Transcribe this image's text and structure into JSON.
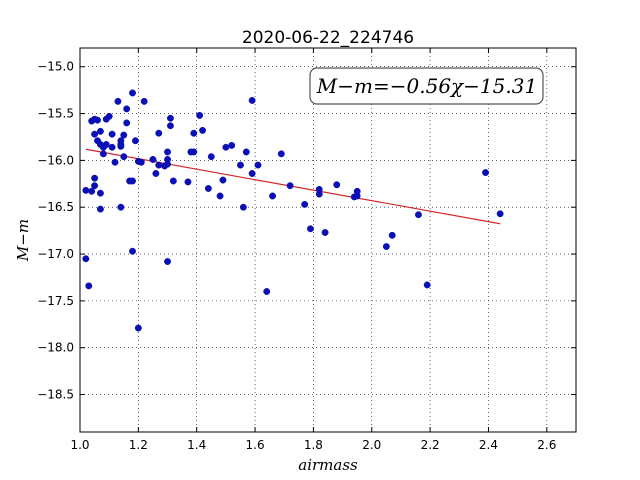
{
  "chart_data": {
    "type": "scatter",
    "title": "2020-06-22_224746",
    "xlabel": "airmass",
    "ylabel": "M−m",
    "xlim": [
      1.0,
      2.7
    ],
    "ylim": [
      -18.9,
      -14.8
    ],
    "y_inverted": true,
    "grid": true,
    "x_ticks": [
      "1.0",
      "1.2",
      "1.4",
      "1.6",
      "1.8",
      "2.0",
      "2.2",
      "2.4",
      "2.6"
    ],
    "y_ticks": [
      "−15.0",
      "−15.5",
      "−16.0",
      "−16.5",
      "−17.0",
      "−17.5",
      "−18.0",
      "−18.5"
    ],
    "annotation": "M−m=−0.56χ−15.31",
    "fit_line": {
      "slope": -0.56,
      "intercept": -15.31,
      "x_range": [
        1.02,
        2.44
      ],
      "color": "#d62728"
    },
    "marker_color": "#0b0fb6",
    "points": [
      [
        1.02,
        -17.05
      ],
      [
        1.03,
        -17.34
      ],
      [
        1.02,
        -16.32
      ],
      [
        1.04,
        -16.33
      ],
      [
        1.05,
        -16.19
      ],
      [
        1.05,
        -16.27
      ],
      [
        1.07,
        -16.35
      ],
      [
        1.07,
        -16.52
      ],
      [
        1.04,
        -15.58
      ],
      [
        1.05,
        -15.56
      ],
      [
        1.06,
        -15.57
      ],
      [
        1.05,
        -15.72
      ],
      [
        1.06,
        -15.79
      ],
      [
        1.07,
        -15.83
      ],
      [
        1.07,
        -15.69
      ],
      [
        1.08,
        -15.86
      ],
      [
        1.08,
        -15.93
      ],
      [
        1.09,
        -15.83
      ],
      [
        1.09,
        -15.56
      ],
      [
        1.1,
        -15.53
      ],
      [
        1.11,
        -15.86
      ],
      [
        1.11,
        -15.72
      ],
      [
        1.12,
        -16.02
      ],
      [
        1.13,
        -15.37
      ],
      [
        1.14,
        -15.79
      ],
      [
        1.14,
        -15.85
      ],
      [
        1.15,
        -15.73
      ],
      [
        1.14,
        -15.83
      ],
      [
        1.15,
        -15.96
      ],
      [
        1.16,
        -15.45
      ],
      [
        1.16,
        -15.6
      ],
      [
        1.17,
        -16.22
      ],
      [
        1.18,
        -16.22
      ],
      [
        1.18,
        -15.28
      ],
      [
        1.19,
        -15.79
      ],
      [
        1.2,
        -16.01
      ],
      [
        1.21,
        -16.02
      ],
      [
        1.22,
        -15.37
      ],
      [
        1.14,
        -16.5
      ],
      [
        1.18,
        -16.97
      ],
      [
        1.2,
        -17.79
      ],
      [
        1.25,
        -15.99
      ],
      [
        1.26,
        -16.14
      ],
      [
        1.27,
        -16.05
      ],
      [
        1.27,
        -15.71
      ],
      [
        1.29,
        -16.06
      ],
      [
        1.3,
        -15.91
      ],
      [
        1.3,
        -15.99
      ],
      [
        1.3,
        -16.04
      ],
      [
        1.31,
        -15.55
      ],
      [
        1.31,
        -15.63
      ],
      [
        1.32,
        -16.22
      ],
      [
        1.3,
        -17.08
      ],
      [
        1.37,
        -16.23
      ],
      [
        1.38,
        -15.91
      ],
      [
        1.39,
        -15.71
      ],
      [
        1.39,
        -15.91
      ],
      [
        1.41,
        -15.52
      ],
      [
        1.42,
        -15.68
      ],
      [
        1.44,
        -16.3
      ],
      [
        1.45,
        -15.96
      ],
      [
        1.48,
        -16.38
      ],
      [
        1.49,
        -16.21
      ],
      [
        1.5,
        -15.86
      ],
      [
        1.52,
        -15.84
      ],
      [
        1.55,
        -16.05
      ],
      [
        1.56,
        -16.5
      ],
      [
        1.57,
        -15.91
      ],
      [
        1.59,
        -15.36
      ],
      [
        1.59,
        -16.14
      ],
      [
        1.61,
        -16.05
      ],
      [
        1.64,
        -17.4
      ],
      [
        1.66,
        -16.38
      ],
      [
        1.69,
        -15.93
      ],
      [
        1.72,
        -16.27
      ],
      [
        1.77,
        -16.47
      ],
      [
        1.79,
        -16.73
      ],
      [
        1.82,
        -16.31
      ],
      [
        1.82,
        -16.36
      ],
      [
        1.84,
        -16.77
      ],
      [
        1.88,
        -16.26
      ],
      [
        1.94,
        -16.39
      ],
      [
        1.95,
        -16.33
      ],
      [
        1.95,
        -16.38
      ],
      [
        2.05,
        -16.92
      ],
      [
        2.07,
        -16.8
      ],
      [
        2.16,
        -16.58
      ],
      [
        2.19,
        -17.33
      ],
      [
        2.39,
        -16.13
      ],
      [
        2.44,
        -16.57
      ]
    ]
  }
}
